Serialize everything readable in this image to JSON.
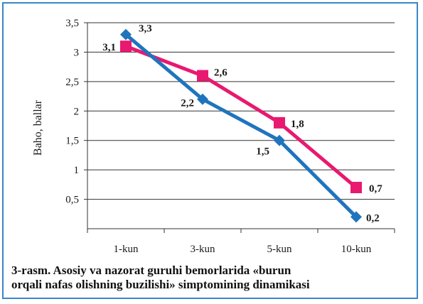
{
  "chart_data": {
    "type": "line",
    "categories": [
      "1-kun",
      "3-kun",
      "5-kun",
      "10-kun"
    ],
    "ylabel": "Baho, ballar",
    "ylim": [
      0,
      3.5
    ],
    "yticks": [
      0.5,
      1,
      1.5,
      2,
      2.5,
      3,
      3.5
    ],
    "ytick_labels": [
      "0,5",
      "1",
      "1,5",
      "2",
      "2,5",
      "3",
      "3,5"
    ],
    "grid": true,
    "series": [
      {
        "values": [
          3.3,
          2.2,
          1.5,
          0.2
        ],
        "labels": [
          "3,3",
          "2,2",
          "1,5",
          "0,2"
        ],
        "color": "#1f74bd",
        "marker": "diamond"
      },
      {
        "values": [
          3.1,
          2.6,
          1.8,
          0.7
        ],
        "labels": [
          "3,1",
          "2,6",
          "1,8",
          "0,7"
        ],
        "color": "#e8196f",
        "marker": "square"
      }
    ]
  },
  "caption": {
    "line1": "3-rasm. Asosiy va nazorat guruhi bemorlarida «burun",
    "line2": "orqali nafas olishning buzilishi» simptomining dinamikasi"
  }
}
